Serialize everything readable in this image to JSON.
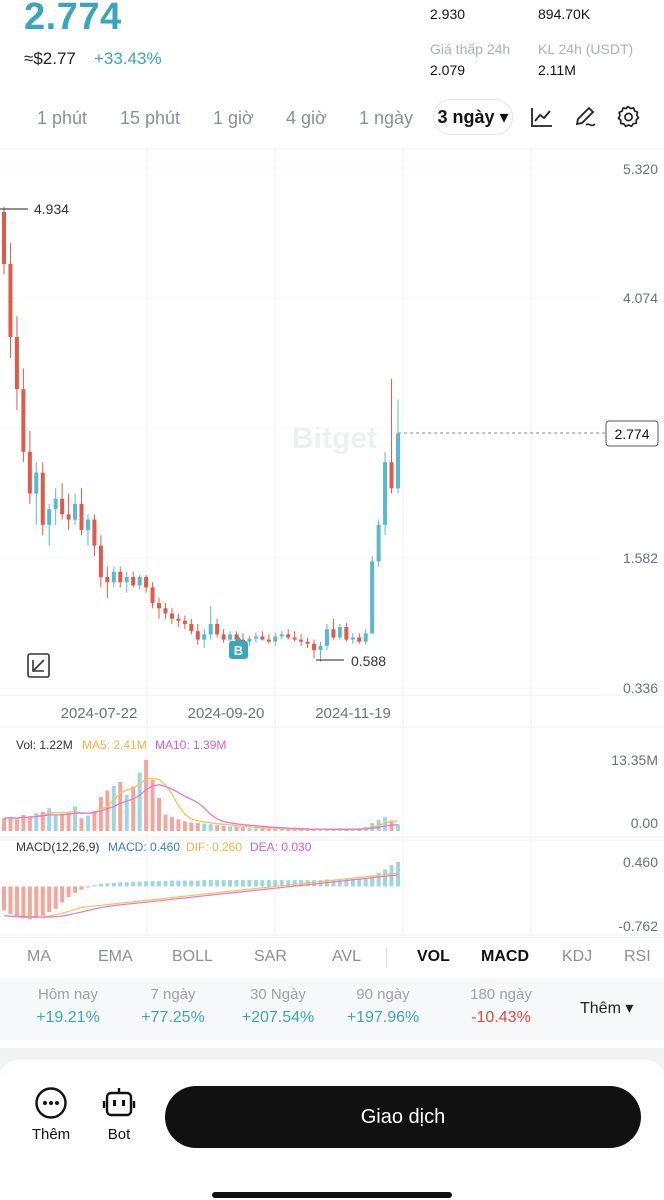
{
  "header": {
    "price": "2.774",
    "approx_usd": "≈$2.77",
    "change_pct": "+33.43%",
    "stats": [
      {
        "label": "",
        "value": "2.930"
      },
      {
        "label": "",
        "value": "894.70K"
      },
      {
        "label": "Giá thấp 24h",
        "value": "2.079"
      },
      {
        "label": "KL 24h (USDT)",
        "value": "2.11M"
      }
    ]
  },
  "timeframes": [
    "1 phút",
    "15 phút",
    "1 giờ",
    "4 giờ",
    "1 ngày"
  ],
  "active_timeframe": "3 ngày ▾",
  "tool_icons": [
    "line-chart-icon",
    "draw-pen-icon",
    "settings-gear-icon"
  ],
  "chart": {
    "watermark": "Bitget",
    "y_ticks": [
      "5.320",
      "4.074",
      "2.774",
      "1.582",
      "0.336"
    ],
    "x_ticks": [
      "2024-07-22",
      "2024-09-20",
      "2024-11-19"
    ],
    "high_label": "4.934",
    "low_label": "0.588",
    "current_price_label": "2.774",
    "buy_marker": "B",
    "colors": {
      "up": "#5ab8cf",
      "down": "#e05a4a",
      "ma5": "#f2c35c",
      "ma10": "#e27bd0"
    }
  },
  "volume": {
    "legend": {
      "vol": "Vol: 1.22M",
      "ma5": "MA5: 2.41M",
      "ma10": "MA10: 1.39M"
    },
    "y_ticks": [
      "13.35M",
      "0.00"
    ]
  },
  "macd": {
    "legend": {
      "title": "MACD(12,26,9)",
      "macd": "MACD: 0.460",
      "dif": "DIF: 0.260",
      "dea": "DEA: 0.030"
    },
    "y_ticks": [
      "0.460",
      "-0.762"
    ]
  },
  "chart_data": {
    "type": "candlestick",
    "ylim": [
      0.336,
      5.32
    ],
    "x_ticks": [
      "2024-07-22",
      "2024-09-20",
      "2024-11-19"
    ],
    "candles": [
      [
        4.9,
        4.95,
        4.3,
        4.4
      ],
      [
        4.4,
        4.6,
        3.5,
        3.7
      ],
      [
        3.7,
        3.9,
        3.0,
        3.2
      ],
      [
        3.2,
        3.4,
        2.5,
        2.6
      ],
      [
        2.6,
        2.8,
        2.1,
        2.2
      ],
      [
        2.2,
        2.5,
        1.9,
        2.4
      ],
      [
        2.4,
        2.5,
        1.8,
        1.9
      ],
      [
        1.9,
        2.1,
        1.7,
        2.05
      ],
      [
        2.05,
        2.25,
        1.9,
        2.15
      ],
      [
        2.15,
        2.3,
        1.95,
        2.0
      ],
      [
        2.0,
        2.2,
        1.85,
        1.95
      ],
      [
        1.95,
        2.2,
        1.9,
        2.1
      ],
      [
        2.1,
        2.25,
        1.8,
        1.85
      ],
      [
        1.85,
        2.0,
        1.7,
        1.95
      ],
      [
        1.95,
        2.0,
        1.6,
        1.7
      ],
      [
        1.7,
        1.8,
        1.3,
        1.4
      ],
      [
        1.4,
        1.5,
        1.2,
        1.35
      ],
      [
        1.35,
        1.5,
        1.3,
        1.45
      ],
      [
        1.45,
        1.5,
        1.3,
        1.35
      ],
      [
        1.35,
        1.45,
        1.25,
        1.4
      ],
      [
        1.4,
        1.45,
        1.3,
        1.32
      ],
      [
        1.32,
        1.42,
        1.28,
        1.4
      ],
      [
        1.4,
        1.42,
        1.25,
        1.3
      ],
      [
        1.3,
        1.35,
        1.1,
        1.15
      ],
      [
        1.15,
        1.2,
        1.0,
        1.1
      ],
      [
        1.1,
        1.15,
        1.0,
        1.05
      ],
      [
        1.05,
        1.1,
        0.95,
        1.0
      ],
      [
        1.0,
        1.05,
        0.92,
        0.98
      ],
      [
        0.98,
        1.03,
        0.9,
        0.95
      ],
      [
        0.95,
        1.0,
        0.85,
        0.88
      ],
      [
        0.88,
        0.95,
        0.75,
        0.8
      ],
      [
        0.8,
        0.9,
        0.72,
        0.85
      ],
      [
        0.85,
        1.12,
        0.8,
        0.95
      ],
      [
        0.95,
        1.0,
        0.82,
        0.85
      ],
      [
        0.85,
        0.9,
        0.77,
        0.8
      ],
      [
        0.8,
        0.88,
        0.76,
        0.85
      ],
      [
        0.85,
        0.88,
        0.78,
        0.8
      ],
      [
        0.8,
        0.86,
        0.75,
        0.78
      ],
      [
        0.78,
        0.84,
        0.74,
        0.81
      ],
      [
        0.81,
        0.87,
        0.77,
        0.83
      ],
      [
        0.83,
        0.88,
        0.79,
        0.8
      ],
      [
        0.8,
        0.85,
        0.76,
        0.78
      ],
      [
        0.78,
        0.86,
        0.74,
        0.83
      ],
      [
        0.83,
        0.88,
        0.8,
        0.85
      ],
      [
        0.85,
        0.9,
        0.8,
        0.82
      ],
      [
        0.82,
        0.88,
        0.78,
        0.8
      ],
      [
        0.8,
        0.85,
        0.74,
        0.78
      ],
      [
        0.78,
        0.82,
        0.72,
        0.76
      ],
      [
        0.76,
        0.8,
        0.62,
        0.7
      ],
      [
        0.7,
        0.78,
        0.588,
        0.74
      ],
      [
        0.74,
        0.95,
        0.7,
        0.9
      ],
      [
        0.9,
        1.0,
        0.8,
        0.82
      ],
      [
        0.82,
        0.95,
        0.8,
        0.92
      ],
      [
        0.92,
        0.96,
        0.78,
        0.8
      ],
      [
        0.8,
        0.86,
        0.76,
        0.82
      ],
      [
        0.82,
        0.86,
        0.76,
        0.78
      ],
      [
        0.78,
        0.9,
        0.75,
        0.86
      ],
      [
        0.86,
        1.6,
        0.85,
        1.55
      ],
      [
        1.55,
        1.95,
        1.5,
        1.9
      ],
      [
        1.9,
        2.6,
        1.8,
        2.5
      ],
      [
        2.5,
        3.3,
        2.2,
        2.25
      ],
      [
        2.25,
        3.1,
        2.2,
        2.774
      ]
    ],
    "volume": [
      2.4,
      2.6,
      2.2,
      3.0,
      2.8,
      3.4,
      3.6,
      4.3,
      2.9,
      3.2,
      3.6,
      4.6,
      2.4,
      2.9,
      3.8,
      6.4,
      7.6,
      8.5,
      9.2,
      6.8,
      8.4,
      11.0,
      13.35,
      9.6,
      6.2,
      3.1,
      2.6,
      2.2,
      1.8,
      1.6,
      1.5,
      1.4,
      1.3,
      1.1,
      1.0,
      0.9,
      0.8,
      0.7,
      0.6,
      0.5,
      0.5,
      0.4,
      0.4,
      0.35,
      0.3,
      0.3,
      0.3,
      0.25,
      0.3,
      0.35,
      0.4,
      0.3,
      0.3,
      0.35,
      0.4,
      0.5,
      0.8,
      1.5,
      2.1,
      2.6,
      2.0,
      1.22
    ],
    "macd_hist": [
      -0.45,
      -0.52,
      -0.58,
      -0.6,
      -0.62,
      -0.6,
      -0.55,
      -0.48,
      -0.42,
      -0.3,
      -0.2,
      -0.12,
      -0.06,
      -0.02,
      0.03,
      0.05,
      0.06,
      0.07,
      0.08,
      0.08,
      0.09,
      0.09,
      0.1,
      0.1,
      0.1,
      0.1,
      0.11,
      0.11,
      0.11,
      0.11,
      0.11,
      0.12,
      0.12,
      0.12,
      0.12,
      0.12,
      0.12,
      0.12,
      0.12,
      0.12,
      0.12,
      0.12,
      0.12,
      0.12,
      0.12,
      0.12,
      0.12,
      0.12,
      0.12,
      0.12,
      0.13,
      0.13,
      0.13,
      0.14,
      0.14,
      0.15,
      0.16,
      0.2,
      0.26,
      0.32,
      0.4,
      0.46
    ],
    "macd_ylim": [
      -0.762,
      0.46
    ]
  },
  "indicators": [
    "MA",
    "EMA",
    "BOLL",
    "SAR",
    "AVL",
    "VOL",
    "MACD",
    "KDJ",
    "RSI"
  ],
  "active_indicators": [
    "VOL",
    "MACD"
  ],
  "performance": [
    {
      "label": "Hôm nay",
      "value": "+19.21%",
      "dir": "up"
    },
    {
      "label": "7 ngày",
      "value": "+77.25%",
      "dir": "up"
    },
    {
      "label": "30 Ngày",
      "value": "+207.54%",
      "dir": "up"
    },
    {
      "label": "90 ngày",
      "value": "+197.96%",
      "dir": "up"
    },
    {
      "label": "180 ngày",
      "value": "-10.43%",
      "dir": "down"
    }
  ],
  "more_label": "Thêm ▾",
  "bottom_bar": {
    "more": "Thêm",
    "bot": "Bot",
    "trade": "Giao dịch"
  }
}
